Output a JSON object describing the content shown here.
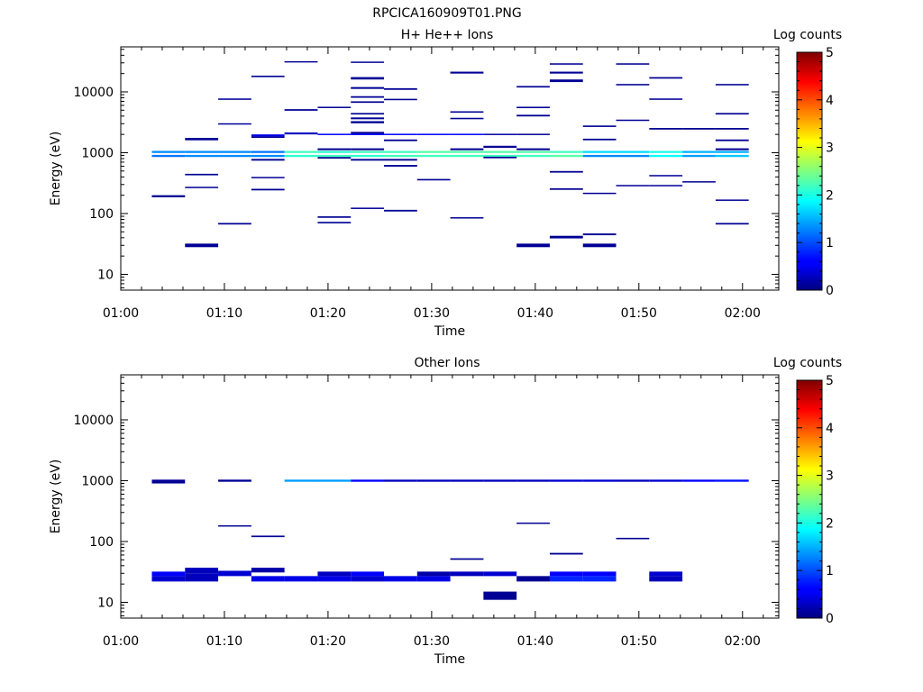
{
  "figure_title": "RPCICA160909T01.PNG",
  "chart_data": [
    {
      "type": "heatmap",
      "title": "H+ He++ Ions",
      "xlabel": "Time",
      "ylabel": "Energy (eV)",
      "x_ticks": [
        "01:00",
        "01:10",
        "01:20",
        "01:30",
        "01:40",
        "01:50",
        "02:00"
      ],
      "x_range_minutes": [
        0,
        63.5
      ],
      "y_scale": "log",
      "y_range": [
        5.5,
        55000
      ],
      "y_ticks": [
        "10",
        "100",
        "1000",
        "10000"
      ],
      "colorbar": {
        "label": "Log counts",
        "range": [
          0,
          5
        ],
        "ticks": [
          "0",
          "1",
          "2",
          "3",
          "4",
          "5"
        ]
      },
      "cells": [
        [
          3,
          6.2,
          1070,
          990,
          1.3
        ],
        [
          3,
          6.2,
          920,
          850,
          1.2
        ],
        [
          3,
          6.2,
          200,
          185,
          0.1
        ],
        [
          6.2,
          9.4,
          1070,
          990,
          1.3
        ],
        [
          6.2,
          9.4,
          920,
          850,
          1.3
        ],
        [
          6.2,
          9.4,
          1750,
          1600,
          0.1
        ],
        [
          6.2,
          9.4,
          450,
          425,
          0.1
        ],
        [
          6.2,
          9.4,
          275,
          262,
          0.1
        ],
        [
          6.2,
          9.4,
          32,
          28,
          0.1
        ],
        [
          9.4,
          12.6,
          1070,
          990,
          1.3
        ],
        [
          9.4,
          12.6,
          920,
          850,
          1.3
        ],
        [
          9.4,
          12.6,
          7800,
          7400,
          0.1
        ],
        [
          9.4,
          12.6,
          3050,
          2900,
          0.1
        ],
        [
          9.4,
          12.6,
          70,
          66,
          0.1
        ],
        [
          12.6,
          15.8,
          1070,
          990,
          1.2
        ],
        [
          12.6,
          15.8,
          920,
          850,
          1.3
        ],
        [
          12.6,
          15.8,
          2000,
          1850,
          0.5
        ],
        [
          12.6,
          15.8,
          1850,
          1750,
          0.1
        ],
        [
          12.6,
          15.8,
          18500,
          17500,
          0.1
        ],
        [
          12.6,
          15.8,
          790,
          740,
          0.1
        ],
        [
          12.6,
          15.8,
          400,
          380,
          0.1
        ],
        [
          12.6,
          15.8,
          255,
          240,
          0.1
        ],
        [
          15.8,
          19,
          1070,
          990,
          2.2
        ],
        [
          15.8,
          19,
          920,
          850,
          2.1
        ],
        [
          15.8,
          19,
          32000,
          30500,
          0.1
        ],
        [
          15.8,
          19,
          2150,
          2000,
          0.3
        ],
        [
          15.8,
          19,
          5200,
          4900,
          0.1
        ],
        [
          19,
          22.2,
          1070,
          990,
          2.1
        ],
        [
          19,
          22.2,
          920,
          850,
          2.2
        ],
        [
          19,
          22.2,
          5700,
          5450,
          0.1
        ],
        [
          19,
          22.2,
          2050,
          1950,
          0.6
        ],
        [
          19,
          22.2,
          1180,
          1100,
          0.1
        ],
        [
          19,
          22.2,
          850,
          800,
          0.1
        ],
        [
          19,
          22.2,
          90,
          85,
          0.1
        ],
        [
          19,
          22.2,
          73,
          69,
          0.1
        ],
        [
          22.2,
          25.4,
          1070,
          990,
          2.2
        ],
        [
          22.2,
          25.4,
          920,
          850,
          2.1
        ],
        [
          22.2,
          25.4,
          31500,
          30000,
          0.1
        ],
        [
          22.2,
          25.4,
          17500,
          16000,
          0.1
        ],
        [
          22.2,
          25.4,
          12000,
          11200,
          0.1
        ],
        [
          22.2,
          25.4,
          8500,
          8000,
          0.1
        ],
        [
          22.2,
          25.4,
          7000,
          6600,
          0.1
        ],
        [
          22.2,
          25.4,
          4500,
          4250,
          0.1
        ],
        [
          22.2,
          25.4,
          3800,
          3550,
          0.1
        ],
        [
          22.2,
          25.4,
          3300,
          3050,
          0.1
        ],
        [
          22.2,
          25.4,
          2200,
          2050,
          0.1
        ],
        [
          22.2,
          25.4,
          2050,
          1950,
          0.6
        ],
        [
          22.2,
          25.4,
          1180,
          1100,
          0.1
        ],
        [
          22.2,
          25.4,
          790,
          740,
          0.1
        ],
        [
          22.2,
          25.4,
          125,
          119,
          0.1
        ],
        [
          25.4,
          28.6,
          1070,
          990,
          2.2
        ],
        [
          25.4,
          28.6,
          920,
          850,
          2.2
        ],
        [
          25.4,
          28.6,
          11500,
          10800,
          0.1
        ],
        [
          25.4,
          28.6,
          7700,
          7300,
          0.1
        ],
        [
          25.4,
          28.6,
          2050,
          1950,
          0.6
        ],
        [
          25.4,
          28.6,
          1650,
          1550,
          0.1
        ],
        [
          25.4,
          28.6,
          790,
          740,
          0.1
        ],
        [
          25.4,
          28.6,
          630,
          590,
          0.1
        ],
        [
          25.4,
          28.6,
          115,
          108,
          0.1
        ],
        [
          28.6,
          31.8,
          1070,
          990,
          2.3
        ],
        [
          28.6,
          31.8,
          920,
          850,
          2.2
        ],
        [
          28.6,
          31.8,
          2050,
          1950,
          0.6
        ],
        [
          28.6,
          31.8,
          370,
          350,
          0.1
        ],
        [
          31.8,
          35,
          1070,
          990,
          2.3
        ],
        [
          31.8,
          35,
          920,
          850,
          2.2
        ],
        [
          31.8,
          35,
          21500,
          20000,
          0.1
        ],
        [
          31.8,
          35,
          4800,
          4550,
          0.1
        ],
        [
          31.8,
          35,
          3750,
          3550,
          0.1
        ],
        [
          31.8,
          35,
          2050,
          1950,
          0.6
        ],
        [
          31.8,
          35,
          1180,
          1100,
          0.1
        ],
        [
          31.8,
          35,
          87,
          84,
          0.1
        ],
        [
          35,
          38.2,
          1070,
          990,
          2.3
        ],
        [
          35,
          38.2,
          920,
          850,
          2.2
        ],
        [
          35,
          38.2,
          2050,
          1950,
          0.2
        ],
        [
          35,
          38.2,
          1300,
          1200,
          0.1
        ],
        [
          35,
          38.2,
          860,
          810,
          0.1
        ],
        [
          38.2,
          41.4,
          1070,
          990,
          2.3
        ],
        [
          38.2,
          41.4,
          920,
          850,
          2.2
        ],
        [
          38.2,
          41.4,
          12500,
          11800,
          0.1
        ],
        [
          38.2,
          41.4,
          5700,
          5400,
          0.1
        ],
        [
          38.2,
          41.4,
          4200,
          3950,
          0.1
        ],
        [
          38.2,
          41.4,
          2050,
          1950,
          0.1
        ],
        [
          38.2,
          41.4,
          1180,
          1100,
          0.1
        ],
        [
          38.2,
          41.4,
          32,
          28,
          0.1
        ],
        [
          41.4,
          44.6,
          1070,
          990,
          2.2
        ],
        [
          41.4,
          44.6,
          920,
          850,
          2.3
        ],
        [
          41.4,
          44.6,
          29500,
          28000,
          0.1
        ],
        [
          41.4,
          44.6,
          21500,
          20000,
          0.1
        ],
        [
          41.4,
          44.6,
          16000,
          14500,
          0.1
        ],
        [
          41.4,
          44.6,
          500,
          470,
          0.1
        ],
        [
          41.4,
          44.6,
          260,
          245,
          0.1
        ],
        [
          41.4,
          44.6,
          43,
          39,
          0.1
        ],
        [
          44.6,
          47.8,
          1070,
          990,
          1.7
        ],
        [
          44.6,
          47.8,
          920,
          850,
          1.3
        ],
        [
          44.6,
          47.8,
          2800,
          2650,
          0.1
        ],
        [
          44.6,
          47.8,
          1700,
          1600,
          0.1
        ],
        [
          44.6,
          47.8,
          220,
          210,
          0.1
        ],
        [
          44.6,
          47.8,
          47,
          44,
          0.1
        ],
        [
          44.6,
          47.8,
          32,
          28,
          0.1
        ],
        [
          47.8,
          51,
          1070,
          990,
          1.7
        ],
        [
          47.8,
          51,
          920,
          850,
          1.3
        ],
        [
          47.8,
          51,
          29500,
          28000,
          0.1
        ],
        [
          47.8,
          51,
          13500,
          12800,
          0.1
        ],
        [
          47.8,
          51,
          3500,
          3350,
          0.1
        ],
        [
          47.8,
          51,
          295,
          285,
          0.1
        ],
        [
          51,
          54.2,
          1070,
          990,
          2.0
        ],
        [
          51,
          54.2,
          920,
          850,
          1.9
        ],
        [
          51,
          54.2,
          17500,
          16500,
          0.1
        ],
        [
          51,
          54.2,
          7800,
          7400,
          0.1
        ],
        [
          51,
          54.2,
          2550,
          2400,
          0.1
        ],
        [
          51,
          54.2,
          430,
          410,
          0.1
        ],
        [
          51,
          54.2,
          295,
          285,
          0.1
        ],
        [
          54.2,
          57.4,
          1070,
          990,
          1.5
        ],
        [
          54.2,
          57.4,
          920,
          850,
          1.4
        ],
        [
          54.2,
          57.4,
          2550,
          2400,
          0.1
        ],
        [
          54.2,
          57.4,
          340,
          325,
          0.1
        ],
        [
          57.4,
          60.6,
          1070,
          990,
          1.5
        ],
        [
          57.4,
          60.6,
          920,
          850,
          1.6
        ],
        [
          57.4,
          60.6,
          13500,
          12800,
          0.1
        ],
        [
          57.4,
          60.6,
          4500,
          4250,
          0.1
        ],
        [
          57.4,
          60.6,
          2550,
          2400,
          0.1
        ],
        [
          57.4,
          60.6,
          1650,
          1550,
          0.1
        ],
        [
          57.4,
          60.6,
          1180,
          1100,
          0.1
        ],
        [
          57.4,
          60.6,
          170,
          162,
          0.1
        ],
        [
          57.4,
          60.6,
          70,
          66,
          0.1
        ]
      ]
    },
    {
      "type": "heatmap",
      "title": "Other Ions",
      "xlabel": "Time",
      "ylabel": "Energy (eV)",
      "x_ticks": [
        "01:00",
        "01:10",
        "01:20",
        "01:30",
        "01:40",
        "01:50",
        "02:00"
      ],
      "x_range_minutes": [
        0,
        63.5
      ],
      "y_scale": "log",
      "y_range": [
        5.5,
        55000
      ],
      "y_ticks": [
        "10",
        "100",
        "1000",
        "10000"
      ],
      "colorbar": {
        "label": "Log counts",
        "range": [
          0,
          5
        ],
        "ticks": [
          "0",
          "1",
          "2",
          "3",
          "4",
          "5"
        ]
      },
      "cells": [
        [
          3,
          6.2,
          1040,
          900,
          0.1
        ],
        [
          3,
          6.2,
          32,
          27,
          0.6
        ],
        [
          3,
          6.2,
          27,
          22,
          0.4
        ],
        [
          6.2,
          9.4,
          37,
          30,
          0.3
        ],
        [
          6.2,
          9.4,
          30,
          22,
          0.3
        ],
        [
          9.4,
          12.6,
          1040,
          960,
          0.1
        ],
        [
          9.4,
          12.6,
          185,
          180,
          0.1
        ],
        [
          9.4,
          12.6,
          33,
          27,
          0.4
        ],
        [
          12.6,
          15.8,
          125,
          118,
          0.1
        ],
        [
          12.6,
          15.8,
          37,
          31,
          0.2
        ],
        [
          12.6,
          15.8,
          27,
          22,
          0.5
        ],
        [
          15.8,
          19,
          1040,
          960,
          1.4
        ],
        [
          15.8,
          19,
          27,
          22,
          0.5
        ],
        [
          19,
          22.2,
          1040,
          960,
          1.4
        ],
        [
          19,
          22.2,
          32,
          27,
          0.3
        ],
        [
          19,
          22.2,
          27,
          22,
          0.5
        ],
        [
          22.2,
          25.4,
          1040,
          960,
          0.6
        ],
        [
          22.2,
          25.4,
          32,
          27,
          0.6
        ],
        [
          22.2,
          25.4,
          27,
          22,
          0.4
        ],
        [
          25.4,
          28.6,
          1040,
          960,
          0.3
        ],
        [
          25.4,
          28.6,
          27,
          22,
          0.5
        ],
        [
          28.6,
          31.8,
          1040,
          960,
          0.3
        ],
        [
          28.6,
          31.8,
          32,
          27,
          0.2
        ],
        [
          28.6,
          31.8,
          27,
          22,
          0.5
        ],
        [
          31.8,
          35,
          1040,
          960,
          0.3
        ],
        [
          31.8,
          35,
          53,
          50,
          0.1
        ],
        [
          31.8,
          35,
          32,
          27,
          0.3
        ],
        [
          35,
          38.2,
          1040,
          960,
          0.3
        ],
        [
          35,
          38.2,
          32,
          27,
          0.4
        ],
        [
          35,
          38.2,
          15,
          11,
          0.1
        ],
        [
          38.2,
          41.4,
          1040,
          960,
          0.3
        ],
        [
          38.2,
          41.4,
          205,
          195,
          0.1
        ],
        [
          38.2,
          41.4,
          27,
          22,
          0.1
        ],
        [
          41.4,
          44.6,
          1040,
          960,
          0.4
        ],
        [
          41.4,
          44.6,
          65,
          61,
          0.1
        ],
        [
          41.4,
          44.6,
          32,
          27,
          0.6
        ],
        [
          41.4,
          44.6,
          27,
          22,
          0.8
        ],
        [
          44.6,
          47.8,
          1040,
          960,
          0.4
        ],
        [
          44.6,
          47.8,
          32,
          27,
          0.6
        ],
        [
          44.6,
          47.8,
          27,
          22,
          0.8
        ],
        [
          47.8,
          51,
          1040,
          960,
          0.3
        ],
        [
          47.8,
          51,
          115,
          109,
          0.1
        ],
        [
          51,
          54.2,
          1040,
          960,
          0.4
        ],
        [
          51,
          54.2,
          32,
          27,
          0.4
        ],
        [
          51,
          54.2,
          27,
          22,
          0.3
        ],
        [
          54.2,
          57.4,
          1040,
          960,
          0.6
        ],
        [
          57.4,
          60.6,
          1040,
          960,
          0.7
        ]
      ]
    }
  ]
}
